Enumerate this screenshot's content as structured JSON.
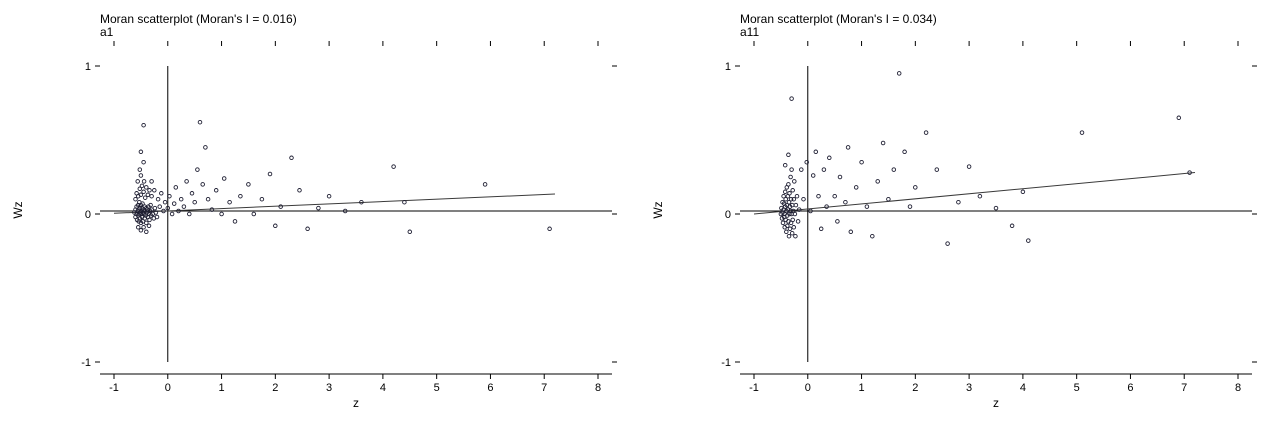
{
  "figure": {
    "background": "#ffffff",
    "marker_color": "#1f1f33",
    "fit_line_color": "#3a3a3a",
    "axis_color": "#000000"
  },
  "chart_data": [
    {
      "type": "scatter",
      "title": "Moran scatterplot (Moran's I = 0.016)",
      "subtitle": "a1",
      "morans_i": 0.016,
      "xlabel": "z",
      "ylabel": "Wz",
      "xlim": [
        -1,
        8
      ],
      "ylim": [
        -1,
        1
      ],
      "xticks": [
        -1,
        0,
        1,
        2,
        3,
        4,
        5,
        6,
        7,
        8
      ],
      "yticks": [
        -1,
        0,
        1
      ],
      "grid": false,
      "legend": "none",
      "reference_lines": {
        "vertical_x": 0,
        "horizontal_y": 0.02
      },
      "fit_line": {
        "x1": -1,
        "y1": 0.005,
        "x2": 7.2,
        "y2": 0.135
      },
      "points": [
        [
          -0.62,
          0.01
        ],
        [
          -0.6,
          0.03
        ],
        [
          -0.6,
          -0.02
        ],
        [
          -0.58,
          0.0
        ],
        [
          -0.58,
          0.05
        ],
        [
          -0.57,
          -0.04
        ],
        [
          -0.56,
          0.02
        ],
        [
          -0.55,
          0.06
        ],
        [
          -0.55,
          -0.01
        ],
        [
          -0.54,
          0.03
        ],
        [
          -0.54,
          -0.05
        ],
        [
          -0.53,
          0.0
        ],
        [
          -0.53,
          0.08
        ],
        [
          -0.52,
          0.04
        ],
        [
          -0.52,
          -0.03
        ],
        [
          -0.51,
          0.01
        ],
        [
          -0.5,
          0.06
        ],
        [
          -0.5,
          -0.06
        ],
        [
          -0.5,
          0.02
        ],
        [
          -0.49,
          0.0
        ],
        [
          -0.48,
          0.04
        ],
        [
          -0.48,
          -0.02
        ],
        [
          -0.47,
          0.07
        ],
        [
          -0.46,
          0.01
        ],
        [
          -0.46,
          -0.05
        ],
        [
          -0.45,
          0.03
        ],
        [
          -0.44,
          0.0
        ],
        [
          -0.43,
          -0.03
        ],
        [
          -0.43,
          0.05
        ],
        [
          -0.42,
          0.02
        ],
        [
          -0.41,
          -0.01
        ],
        [
          -0.4,
          0.04
        ],
        [
          -0.4,
          -0.06
        ],
        [
          -0.39,
          0.01
        ],
        [
          -0.38,
          0.03
        ],
        [
          -0.37,
          -0.02
        ],
        [
          -0.36,
          0.05
        ],
        [
          -0.35,
          0.0
        ],
        [
          -0.34,
          -0.04
        ],
        [
          -0.33,
          0.02
        ],
        [
          -0.32,
          0.06
        ],
        [
          -0.31,
          -0.01
        ],
        [
          -0.3,
          0.03
        ],
        [
          -0.28,
          0.0
        ],
        [
          -0.26,
          -0.03
        ],
        [
          -0.24,
          0.04
        ],
        [
          -0.22,
          0.01
        ],
        [
          -0.2,
          -0.02
        ],
        [
          -0.6,
          0.1
        ],
        [
          -0.58,
          0.14
        ],
        [
          -0.55,
          0.12
        ],
        [
          -0.52,
          0.17
        ],
        [
          -0.5,
          0.13
        ],
        [
          -0.48,
          0.19
        ],
        [
          -0.45,
          0.15
        ],
        [
          -0.42,
          0.11
        ],
        [
          -0.4,
          0.18
        ],
        [
          -0.37,
          0.13
        ],
        [
          -0.34,
          0.16
        ],
        [
          -0.3,
          0.12
        ],
        [
          -0.55,
          -0.09
        ],
        [
          -0.5,
          -0.11
        ],
        [
          -0.45,
          -0.09
        ],
        [
          -0.4,
          -0.12
        ],
        [
          -0.35,
          -0.08
        ],
        [
          -0.56,
          0.22
        ],
        [
          -0.5,
          0.26
        ],
        [
          -0.44,
          0.22
        ],
        [
          -0.52,
          0.3
        ],
        [
          -0.45,
          0.35
        ],
        [
          -0.5,
          0.42
        ],
        [
          -0.45,
          0.6
        ],
        [
          -0.3,
          0.22
        ],
        [
          -0.25,
          0.16
        ],
        [
          -0.18,
          0.1
        ],
        [
          -0.15,
          0.05
        ],
        [
          -0.12,
          0.14
        ],
        [
          -0.08,
          0.02
        ],
        [
          -0.05,
          0.08
        ],
        [
          0.0,
          0.04
        ],
        [
          0.03,
          0.12
        ],
        [
          0.08,
          0.0
        ],
        [
          0.12,
          0.07
        ],
        [
          0.15,
          0.18
        ],
        [
          0.2,
          0.02
        ],
        [
          0.25,
          0.1
        ],
        [
          0.3,
          0.05
        ],
        [
          0.35,
          0.22
        ],
        [
          0.4,
          0.0
        ],
        [
          0.45,
          0.14
        ],
        [
          0.5,
          0.08
        ],
        [
          0.55,
          0.3
        ],
        [
          0.6,
          0.62
        ],
        [
          0.65,
          0.2
        ],
        [
          0.7,
          0.45
        ],
        [
          0.75,
          0.1
        ],
        [
          0.82,
          0.03
        ],
        [
          0.9,
          0.16
        ],
        [
          1.0,
          0.0
        ],
        [
          1.05,
          0.24
        ],
        [
          1.15,
          0.08
        ],
        [
          1.25,
          -0.05
        ],
        [
          1.35,
          0.12
        ],
        [
          1.5,
          0.2
        ],
        [
          1.6,
          0.0
        ],
        [
          1.75,
          0.1
        ],
        [
          1.9,
          0.27
        ],
        [
          2.0,
          -0.08
        ],
        [
          2.1,
          0.05
        ],
        [
          2.3,
          0.38
        ],
        [
          2.45,
          0.16
        ],
        [
          2.6,
          -0.1
        ],
        [
          2.8,
          0.04
        ],
        [
          3.0,
          0.12
        ],
        [
          3.3,
          0.02
        ],
        [
          3.6,
          0.08
        ],
        [
          4.2,
          0.32
        ],
        [
          4.4,
          0.08
        ],
        [
          4.5,
          -0.12
        ],
        [
          5.9,
          0.2
        ],
        [
          7.1,
          -0.1
        ]
      ]
    },
    {
      "type": "scatter",
      "title": "Moran scatterplot (Moran's I = 0.034)",
      "subtitle": "a11",
      "morans_i": 0.034,
      "xlabel": "z",
      "ylabel": "Wz",
      "xlim": [
        -1,
        8
      ],
      "ylim": [
        -1,
        1
      ],
      "xticks": [
        -1,
        0,
        1,
        2,
        3,
        4,
        5,
        6,
        7,
        8
      ],
      "yticks": [
        -1,
        0,
        1
      ],
      "grid": false,
      "legend": "none",
      "reference_lines": {
        "vertical_x": 0,
        "horizontal_y": 0.02
      },
      "fit_line": {
        "x1": -1,
        "y1": 0.0,
        "x2": 7.2,
        "y2": 0.28
      },
      "points": [
        [
          -0.5,
          0.0
        ],
        [
          -0.49,
          0.04
        ],
        [
          -0.48,
          -0.03
        ],
        [
          -0.47,
          0.08
        ],
        [
          -0.47,
          0.01
        ],
        [
          -0.46,
          -0.06
        ],
        [
          -0.45,
          0.12
        ],
        [
          -0.45,
          0.03
        ],
        [
          -0.44,
          -0.02
        ],
        [
          -0.44,
          0.07
        ],
        [
          -0.43,
          0.0
        ],
        [
          -0.43,
          -0.09
        ],
        [
          -0.42,
          0.15
        ],
        [
          -0.42,
          0.05
        ],
        [
          -0.41,
          -0.04
        ],
        [
          -0.41,
          0.1
        ],
        [
          -0.4,
          0.02
        ],
        [
          -0.4,
          -0.12
        ],
        [
          -0.39,
          0.18
        ],
        [
          -0.39,
          0.06
        ],
        [
          -0.38,
          -0.01
        ],
        [
          -0.38,
          -0.08
        ],
        [
          -0.37,
          0.12
        ],
        [
          -0.37,
          0.03
        ],
        [
          -0.36,
          -0.05
        ],
        [
          -0.36,
          0.2
        ],
        [
          -0.35,
          0.08
        ],
        [
          -0.35,
          -0.15
        ],
        [
          -0.34,
          0.0
        ],
        [
          -0.34,
          0.14
        ],
        [
          -0.33,
          0.05
        ],
        [
          -0.33,
          -0.1
        ],
        [
          -0.32,
          0.25
        ],
        [
          -0.32,
          0.02
        ],
        [
          -0.31,
          -0.06
        ],
        [
          -0.31,
          0.1
        ],
        [
          -0.3,
          0.3
        ],
        [
          -0.3,
          0.0
        ],
        [
          -0.29,
          -0.13
        ],
        [
          -0.29,
          0.06
        ],
        [
          -0.28,
          0.16
        ],
        [
          -0.28,
          -0.04
        ],
        [
          -0.27,
          0.02
        ],
        [
          -0.26,
          -0.09
        ],
        [
          -0.26,
          0.1
        ],
        [
          -0.25,
          0.22
        ],
        [
          -0.24,
          0.0
        ],
        [
          -0.23,
          -0.15
        ],
        [
          -0.22,
          0.06
        ],
        [
          -0.2,
          0.12
        ],
        [
          -0.18,
          -0.05
        ],
        [
          -0.16,
          0.03
        ],
        [
          -0.3,
          0.78
        ],
        [
          -0.36,
          0.4
        ],
        [
          -0.42,
          0.33
        ],
        [
          -0.12,
          0.3
        ],
        [
          -0.08,
          0.1
        ],
        [
          -0.02,
          0.35
        ],
        [
          0.05,
          0.02
        ],
        [
          0.1,
          0.26
        ],
        [
          0.15,
          0.42
        ],
        [
          0.2,
          0.12
        ],
        [
          0.25,
          -0.1
        ],
        [
          0.3,
          0.3
        ],
        [
          0.35,
          0.05
        ],
        [
          0.4,
          0.38
        ],
        [
          0.5,
          0.12
        ],
        [
          0.55,
          -0.05
        ],
        [
          0.6,
          0.25
        ],
        [
          0.7,
          0.08
        ],
        [
          0.75,
          0.45
        ],
        [
          0.8,
          -0.12
        ],
        [
          0.9,
          0.18
        ],
        [
          1.0,
          0.35
        ],
        [
          1.1,
          0.05
        ],
        [
          1.2,
          -0.15
        ],
        [
          1.3,
          0.22
        ],
        [
          1.4,
          0.48
        ],
        [
          1.5,
          0.1
        ],
        [
          1.6,
          0.3
        ],
        [
          1.7,
          0.95
        ],
        [
          1.8,
          0.42
        ],
        [
          1.9,
          0.05
        ],
        [
          2.0,
          0.18
        ],
        [
          2.2,
          0.55
        ],
        [
          2.4,
          0.3
        ],
        [
          2.6,
          -0.2
        ],
        [
          2.8,
          0.08
        ],
        [
          3.0,
          0.32
        ],
        [
          3.2,
          0.12
        ],
        [
          3.5,
          0.04
        ],
        [
          3.8,
          -0.08
        ],
        [
          4.0,
          0.15
        ],
        [
          4.1,
          -0.18
        ],
        [
          5.1,
          0.55
        ],
        [
          6.9,
          0.65
        ],
        [
          7.1,
          0.28
        ]
      ]
    }
  ]
}
